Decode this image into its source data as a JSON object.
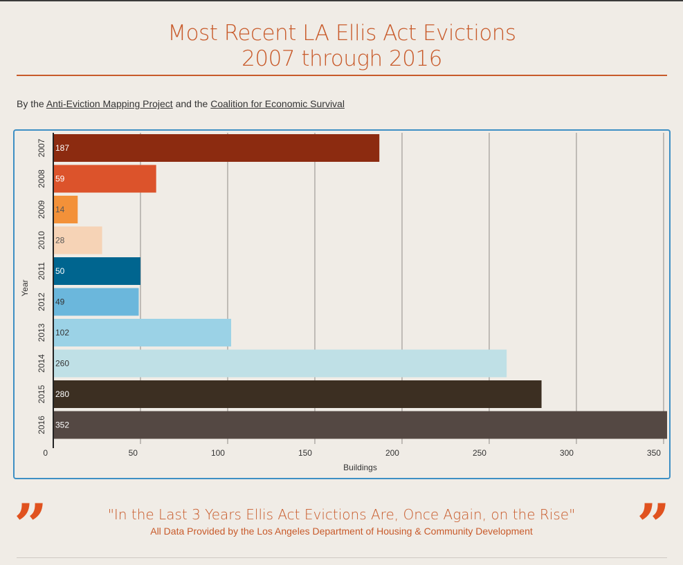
{
  "title": {
    "line1": "Most Recent LA Ellis Act Evictions",
    "line2": "2007 through 2016"
  },
  "byline": {
    "prefix": "By the",
    "link1": "Anti-Eviction Mapping Project",
    "middle": "and the",
    "link2": "Coalition for Economic Survival"
  },
  "chart_data": {
    "type": "bar",
    "orientation": "horizontal",
    "categories": [
      "2007",
      "2008",
      "2009",
      "2010",
      "2011",
      "2012",
      "2013",
      "2014",
      "2015",
      "2016"
    ],
    "values": [
      187,
      59,
      14,
      28,
      50,
      49,
      102,
      260,
      280,
      352
    ],
    "data_labels": [
      "187",
      "59",
      "14",
      "28",
      "50",
      "49",
      "102",
      "260",
      "280",
      "352"
    ],
    "colors": [
      "#8c2b10",
      "#dc532b",
      "#f39139",
      "#f6d3b6",
      "#00658f",
      "#6bb7dc",
      "#9bd2e6",
      "#bfe0e6",
      "#3c2f22",
      "#544843"
    ],
    "label_colors": [
      "#ffffff",
      "#ffffff",
      "#555555",
      "#555555",
      "#ffffff",
      "#333333",
      "#333333",
      "#333333",
      "#ffffff",
      "#ffffff"
    ],
    "xlabel": "Buildings",
    "ylabel": "Year",
    "xlim": [
      0,
      352
    ],
    "xticks": [
      0,
      50,
      100,
      150,
      200,
      250,
      300,
      350
    ],
    "xtick_labels": [
      "0",
      "50",
      "100",
      "150",
      "200",
      "250",
      "300",
      "350"
    ],
    "grid": true
  },
  "quote": {
    "open_mark": "”",
    "close_mark": "”",
    "text": "\"In the Last 3 Years Ellis Act Evictions Are, Once Again, on the Rise\"",
    "source": "All Data Provided by the Los Angeles Department of Housing & Community Development"
  }
}
